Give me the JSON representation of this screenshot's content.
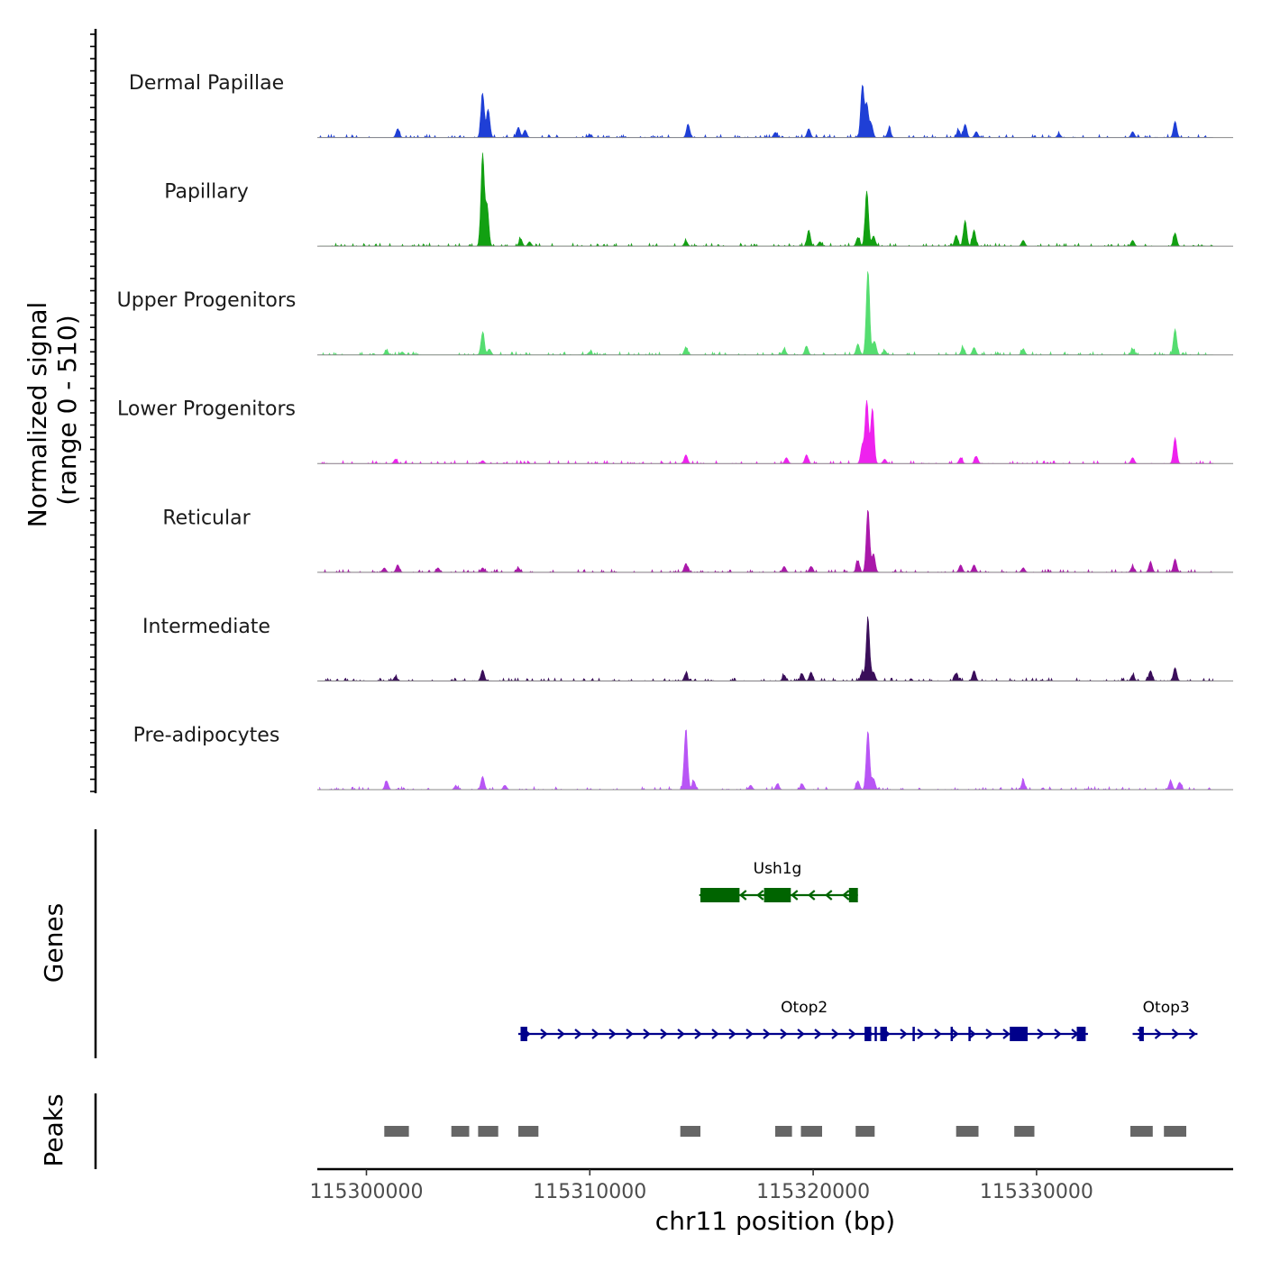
{
  "chart_data": {
    "type": "area",
    "title": "",
    "xlabel": "chr11 position (bp)",
    "ylabel_line1": "Normalized signal",
    "ylabel_line2": "(range 0 - 510)",
    "xlim": [
      115297800,
      115338800
    ],
    "ylim": [
      0,
      510
    ],
    "x_ticks": [
      {
        "value": 115300000,
        "label": "115300000"
      },
      {
        "value": 115310000,
        "label": "115310000"
      },
      {
        "value": 115320000,
        "label": "115320000"
      },
      {
        "value": 115330000,
        "label": "115330000"
      }
    ],
    "sections": {
      "genes_label": "Genes",
      "peaks_label": "Peaks"
    },
    "series": [
      {
        "name": "Dermal Papillae",
        "color": "#1f3fd6",
        "peaks": [
          [
            115301400,
            12
          ],
          [
            115305200,
            60
          ],
          [
            115305450,
            38
          ],
          [
            115306800,
            14
          ],
          [
            115307100,
            10
          ],
          [
            115310000,
            4
          ],
          [
            115314400,
            18
          ],
          [
            115318300,
            7
          ],
          [
            115319800,
            12
          ],
          [
            115322200,
            70
          ],
          [
            115322400,
            45
          ],
          [
            115322600,
            18
          ],
          [
            115323400,
            12
          ],
          [
            115326500,
            10
          ],
          [
            115326800,
            18
          ],
          [
            115327300,
            8
          ],
          [
            115331000,
            5
          ],
          [
            115334300,
            8
          ],
          [
            115336200,
            22
          ]
        ]
      },
      {
        "name": "Papillary",
        "color": "#12a012",
        "peaks": [
          [
            115305200,
            125
          ],
          [
            115305400,
            55
          ],
          [
            115306900,
            10
          ],
          [
            115307300,
            6
          ],
          [
            115314300,
            7
          ],
          [
            115319800,
            22
          ],
          [
            115320300,
            6
          ],
          [
            115322000,
            12
          ],
          [
            115322400,
            75
          ],
          [
            115322700,
            14
          ],
          [
            115326400,
            15
          ],
          [
            115326800,
            35
          ],
          [
            115327200,
            22
          ],
          [
            115329400,
            8
          ],
          [
            115334300,
            8
          ],
          [
            115336200,
            18
          ]
        ]
      },
      {
        "name": "Upper Progenitors",
        "color": "#55dd70",
        "peaks": [
          [
            115300900,
            6
          ],
          [
            115301600,
            4
          ],
          [
            115305200,
            30
          ],
          [
            115305500,
            8
          ],
          [
            115310000,
            4
          ],
          [
            115314300,
            10
          ],
          [
            115318700,
            8
          ],
          [
            115319700,
            12
          ],
          [
            115322000,
            15
          ],
          [
            115322450,
            115
          ],
          [
            115322750,
            18
          ],
          [
            115323200,
            6
          ],
          [
            115326700,
            10
          ],
          [
            115327200,
            10
          ],
          [
            115329400,
            8
          ],
          [
            115334300,
            8
          ],
          [
            115336200,
            35
          ]
        ]
      },
      {
        "name": "Lower Progenitors",
        "color": "#ee22ee",
        "peaks": [
          [
            115301300,
            6
          ],
          [
            115305200,
            4
          ],
          [
            115314300,
            12
          ],
          [
            115318800,
            8
          ],
          [
            115319700,
            12
          ],
          [
            115322200,
            25
          ],
          [
            115322400,
            85
          ],
          [
            115322650,
            75
          ],
          [
            115323200,
            6
          ],
          [
            115326600,
            8
          ],
          [
            115327300,
            10
          ],
          [
            115334300,
            8
          ],
          [
            115336200,
            35
          ]
        ]
      },
      {
        "name": "Reticular",
        "color": "#aa18aa",
        "peaks": [
          [
            115300800,
            6
          ],
          [
            115301400,
            10
          ],
          [
            115303200,
            6
          ],
          [
            115305200,
            6
          ],
          [
            115306800,
            6
          ],
          [
            115314300,
            12
          ],
          [
            115318700,
            8
          ],
          [
            115319900,
            8
          ],
          [
            115322000,
            15
          ],
          [
            115322450,
            85
          ],
          [
            115322700,
            25
          ],
          [
            115326600,
            10
          ],
          [
            115327200,
            10
          ],
          [
            115329400,
            6
          ],
          [
            115334300,
            8
          ],
          [
            115335100,
            14
          ],
          [
            115336200,
            18
          ]
        ]
      },
      {
        "name": "Intermediate",
        "color": "#3a0e5a",
        "peaks": [
          [
            115301300,
            6
          ],
          [
            115305200,
            15
          ],
          [
            115314300,
            10
          ],
          [
            115318700,
            8
          ],
          [
            115319500,
            10
          ],
          [
            115319900,
            12
          ],
          [
            115322200,
            12
          ],
          [
            115322450,
            85
          ],
          [
            115322700,
            12
          ],
          [
            115326400,
            8
          ],
          [
            115327200,
            14
          ],
          [
            115334300,
            8
          ],
          [
            115335100,
            14
          ],
          [
            115336200,
            18
          ]
        ]
      },
      {
        "name": "Pre-adipocytes",
        "color": "#b855f5",
        "peaks": [
          [
            115300900,
            12
          ],
          [
            115304000,
            5
          ],
          [
            115305200,
            18
          ],
          [
            115306200,
            6
          ],
          [
            115314300,
            82
          ],
          [
            115314650,
            12
          ],
          [
            115317200,
            6
          ],
          [
            115318400,
            8
          ],
          [
            115319500,
            8
          ],
          [
            115322000,
            12
          ],
          [
            115322450,
            80
          ],
          [
            115322700,
            15
          ],
          [
            115329400,
            12
          ],
          [
            115336000,
            12
          ],
          [
            115336400,
            10
          ]
        ]
      }
    ],
    "genes": [
      {
        "name": "Ush1g",
        "strand": "-",
        "color": "#006400",
        "start": 115314900,
        "end": 115322000,
        "exons": [
          [
            115314950,
            115316700
          ],
          [
            115317800,
            115319000
          ],
          [
            115321600,
            115322000
          ]
        ]
      },
      {
        "name": "Otop2",
        "strand": "+",
        "color": "#00008b",
        "start": 115306800,
        "end": 115332300,
        "exons": [
          [
            115306900,
            115307200
          ],
          [
            115322300,
            115322600
          ],
          [
            115323000,
            115323300
          ],
          [
            115328800,
            115329600
          ],
          [
            115331800,
            115332200
          ]
        ]
      },
      {
        "name": "Otop3",
        "strand": "+",
        "color": "#00008b",
        "start": 115334300,
        "end": 115337200,
        "exons": [
          [
            115334600,
            115334800
          ]
        ]
      }
    ],
    "peaks_regions": [
      [
        115300800,
        115301900
      ],
      [
        115303800,
        115304600
      ],
      [
        115305000,
        115305900
      ],
      [
        115306800,
        115307700
      ],
      [
        115314050,
        115314950
      ],
      [
        115318300,
        115319050
      ],
      [
        115319450,
        115320400
      ],
      [
        115321900,
        115322750
      ],
      [
        115326400,
        115327400
      ],
      [
        115329000,
        115329900
      ],
      [
        115334200,
        115335200
      ],
      [
        115335700,
        115336700
      ]
    ]
  }
}
